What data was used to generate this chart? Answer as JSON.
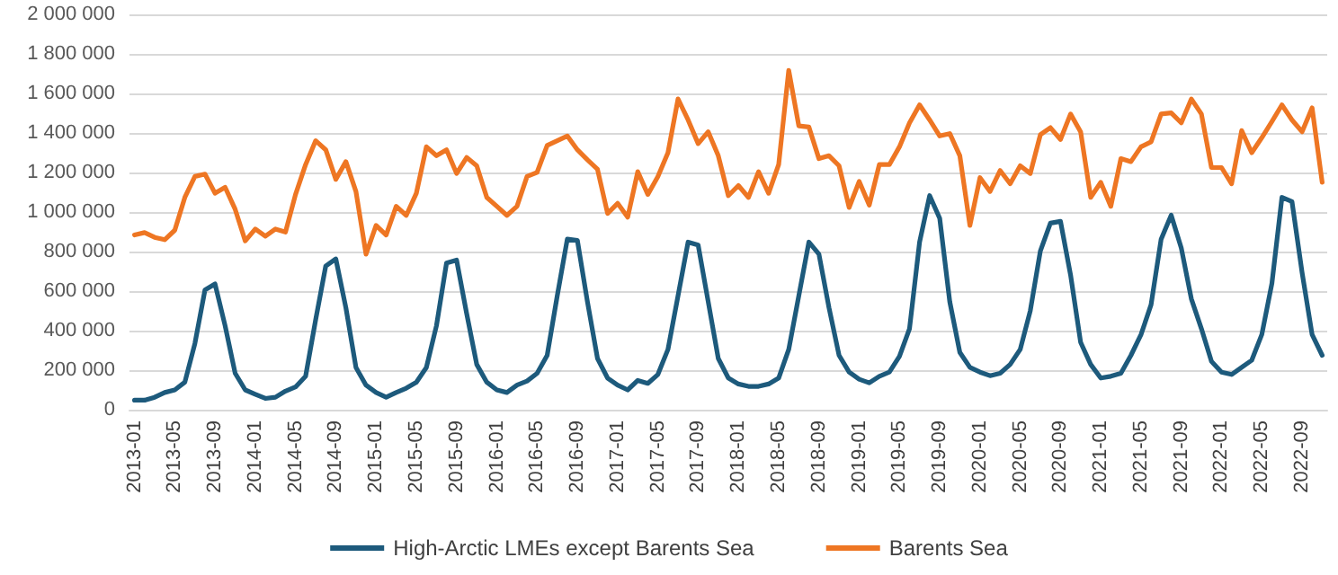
{
  "chart_data": {
    "type": "line",
    "categories": [
      "2013-01",
      null,
      null,
      null,
      "2013-05",
      null,
      null,
      null,
      "2013-09",
      null,
      null,
      null,
      "2014-01",
      null,
      null,
      null,
      "2014-05",
      null,
      null,
      null,
      "2014-09",
      null,
      null,
      null,
      "2015-01",
      null,
      null,
      null,
      "2015-05",
      null,
      null,
      null,
      "2015-09",
      null,
      null,
      null,
      "2016-01",
      null,
      null,
      null,
      "2016-05",
      null,
      null,
      null,
      "2016-09",
      null,
      null,
      null,
      "2017-01",
      null,
      null,
      null,
      "2017-05",
      null,
      null,
      null,
      "2017-09",
      null,
      null,
      null,
      "2018-01",
      null,
      null,
      null,
      "2018-05",
      null,
      null,
      null,
      "2018-09",
      null,
      null,
      null,
      "2019-01",
      null,
      null,
      null,
      "2019-05",
      null,
      null,
      null,
      "2019-09",
      null,
      null,
      null,
      "2020-01",
      null,
      null,
      null,
      "2020-05",
      null,
      null,
      null,
      "2020-09",
      null,
      null,
      null,
      "2021-01",
      null,
      null,
      null,
      "2021-05",
      null,
      null,
      null,
      "2021-09",
      null,
      null,
      null,
      "2022-01",
      null,
      null,
      null,
      "2022-05",
      null,
      null,
      null,
      "2022-09",
      null,
      null
    ],
    "series": [
      {
        "name": "High-Arctic LMEs except Barents Sea",
        "color": "#1d5a7c",
        "values": [
          48000,
          48000,
          63000,
          87000,
          100000,
          139000,
          335000,
          606000,
          636000,
          425000,
          184000,
          100000,
          78000,
          57000,
          63000,
          94000,
          115000,
          169000,
          456000,
          727000,
          763000,
          516000,
          214000,
          124000,
          87000,
          63000,
          87000,
          109000,
          139000,
          214000,
          425000,
          742000,
          757000,
          486000,
          229000,
          139000,
          100000,
          87000,
          124000,
          145000,
          184000,
          275000,
          576000,
          863000,
          857000,
          546000,
          259000,
          160000,
          124000,
          100000,
          148000,
          133000,
          178000,
          305000,
          576000,
          848000,
          833000,
          546000,
          259000,
          160000,
          130000,
          118000,
          118000,
          130000,
          160000,
          305000,
          576000,
          848000,
          787000,
          516000,
          275000,
          190000,
          154000,
          136000,
          169000,
          190000,
          270000,
          410000,
          848000,
          1083000,
          968000,
          546000,
          290000,
          214000,
          190000,
          172000,
          184000,
          229000,
          305000,
          501000,
          803000,
          944000,
          953000,
          682000,
          341000,
          229000,
          160000,
          169000,
          184000,
          275000,
          380000,
          531000,
          863000,
          984000,
          818000,
          561000,
          410000,
          244000,
          190000,
          178000,
          214000,
          250000,
          380000,
          637000,
          1074000,
          1053000,
          695000,
          380000,
          275000
        ]
      },
      {
        "name": "Barents Sea",
        "color": "#ee7623",
        "values": [
          884000,
          896000,
          872000,
          860000,
          908000,
          1074000,
          1180000,
          1192000,
          1095000,
          1125000,
          1014000,
          854000,
          914000,
          878000,
          914000,
          899000,
          1089000,
          1240000,
          1361000,
          1315000,
          1165000,
          1255000,
          1104000,
          787000,
          932000,
          884000,
          1029000,
          983000,
          1095000,
          1330000,
          1285000,
          1315000,
          1195000,
          1276000,
          1234000,
          1074000,
          1029000,
          983000,
          1029000,
          1180000,
          1201000,
          1337000,
          1361000,
          1385000,
          1315000,
          1264000,
          1216000,
          993000,
          1044000,
          974000,
          1204000,
          1089000,
          1180000,
          1300000,
          1572000,
          1466000,
          1346000,
          1406000,
          1285000,
          1083000,
          1134000,
          1074000,
          1204000,
          1095000,
          1240000,
          1717000,
          1436000,
          1430000,
          1270000,
          1285000,
          1234000,
          1023000,
          1155000,
          1035000,
          1240000,
          1240000,
          1330000,
          1451000,
          1542000,
          1466000,
          1385000,
          1397000,
          1285000,
          932000,
          1174000,
          1104000,
          1210000,
          1143000,
          1234000,
          1195000,
          1391000,
          1427000,
          1367000,
          1496000,
          1406000,
          1074000,
          1150000,
          1029000,
          1270000,
          1255000,
          1330000,
          1355000,
          1496000,
          1502000,
          1451000,
          1572000,
          1496000,
          1225000,
          1225000,
          1143000,
          1412000,
          1300000,
          1376000,
          1457000,
          1542000,
          1466000,
          1406000,
          1527000,
          1150000
        ]
      }
    ],
    "ylim": [
      0,
      2000000
    ],
    "yticks": [
      {
        "value": 0,
        "label": "0"
      },
      {
        "value": 200000,
        "label": "200 000"
      },
      {
        "value": 400000,
        "label": "400 000"
      },
      {
        "value": 600000,
        "label": "600 000"
      },
      {
        "value": 800000,
        "label": "800 000"
      },
      {
        "value": 1000000,
        "label": "1 000 000"
      },
      {
        "value": 1200000,
        "label": "1 200 000"
      },
      {
        "value": 1400000,
        "label": "1 400 000"
      },
      {
        "value": 1600000,
        "label": "1 600 000"
      },
      {
        "value": 1800000,
        "label": "1 800 000"
      },
      {
        "value": 2000000,
        "label": "2 000 000"
      }
    ],
    "grid": "y",
    "legend": "bottom",
    "marker": "none",
    "line_style": "solid"
  }
}
